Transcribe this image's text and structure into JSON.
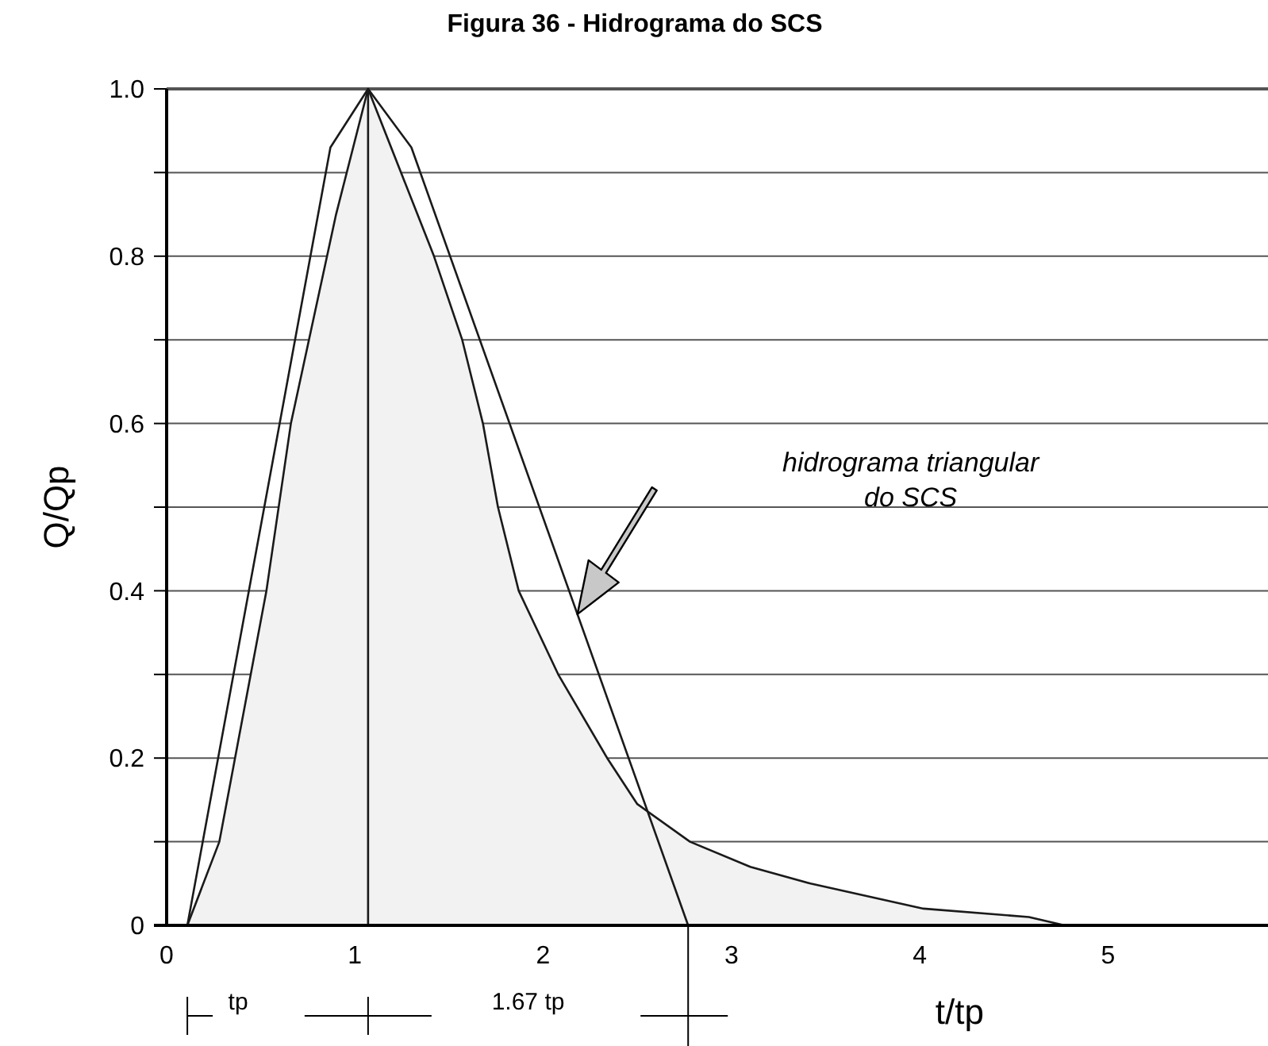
{
  "chart_data": {
    "type": "line",
    "title": "Figura 36 - Hidrograma do SCS",
    "xlabel": "t/tp",
    "ylabel": "Q/Qp",
    "xlim": [
      0,
      5.85
    ],
    "xticks": [
      0,
      1,
      2,
      3,
      4,
      5
    ],
    "ylim": [
      0,
      1
    ],
    "yticks": [
      0,
      {
        "value": 0.1,
        "label": null
      },
      0.2,
      {
        "value": 0.3,
        "label": null
      },
      0.4,
      {
        "value": 0.5,
        "label": null
      },
      0.6,
      {
        "value": 0.7,
        "label": null
      },
      0.8,
      {
        "value": 0.9,
        "label": null
      },
      {
        "value": 1,
        "label": "1.0"
      }
    ],
    "grid": "y",
    "marker": "none",
    "line_style": "solid",
    "series": [
      {
        "type": "area",
        "color": "#f2f2f2",
        "x": [
          0.11,
          0.28,
          0.53,
          0.66,
          0.9,
          1.07,
          1.42,
          1.57,
          1.68,
          1.76,
          1.87,
          2.08,
          2.34,
          2.5,
          2.78,
          3.1,
          3.42,
          4.02,
          4.58,
          4.77
        ],
        "values": [
          0,
          0.1,
          0.4,
          0.6,
          0.85,
          1.0,
          0.8,
          0.7,
          0.6,
          0.5,
          0.4,
          0.3,
          0.2,
          0.145,
          0.1,
          0.07,
          0.05,
          0.02,
          0.01,
          0
        ]
      },
      {
        "color": "#1a1a1a",
        "x": [
          0.11,
          0.87,
          1.07,
          1.3,
          2.77
        ],
        "values": [
          0,
          0.93,
          1.0,
          0.93,
          0
        ]
      }
    ],
    "ref_lines": [
      {
        "axis": "x",
        "value": 1.07,
        "color": "#1a1a1a"
      }
    ],
    "annotations": [
      "hidrograma triangular\ndo SCS",
      "tp",
      "1.67 tp"
    ]
  }
}
